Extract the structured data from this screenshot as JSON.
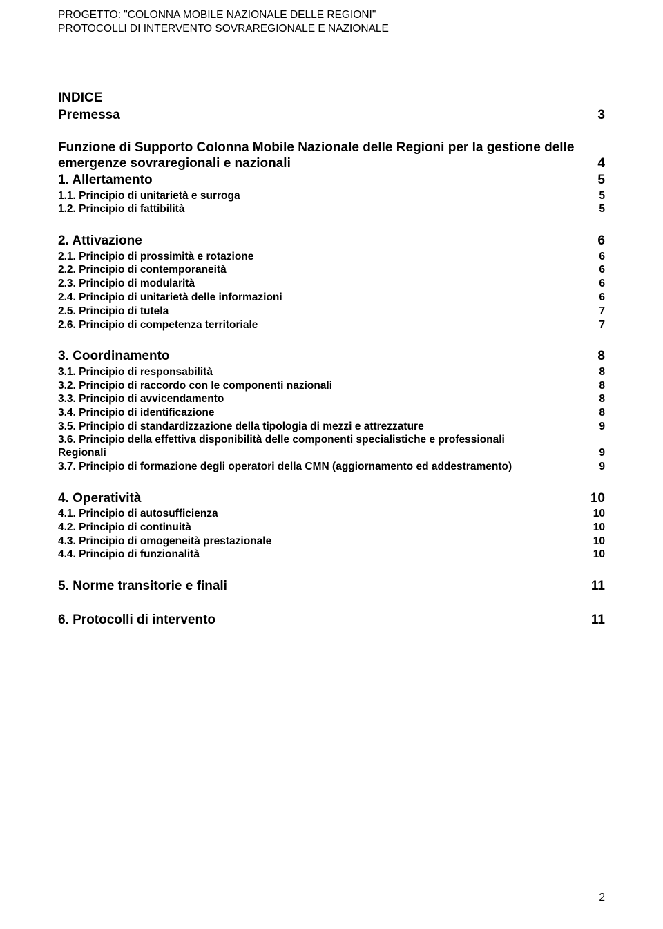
{
  "header": {
    "line1": "PROGETTO: \"COLONNA MOBILE NAZIONALE DELLE REGIONI\"",
    "line2": "PROTOCOLLI DI INTERVENTO SOVRAREGIONALE E NAZIONALE"
  },
  "toc": {
    "title": "INDICE",
    "premessa": {
      "label": "Premessa",
      "page": "3"
    },
    "funzione": {
      "line1": "Funzione di Supporto Colonna Mobile Nazionale delle Regioni per la gestione delle",
      "line2": "emergenze sovraregionali e nazionali",
      "page": "4"
    },
    "s1": {
      "head": {
        "label": "1. Allertamento",
        "page": "5"
      },
      "items": [
        {
          "label": "1.1. Principio di unitarietà e surroga",
          "page": "5"
        },
        {
          "label": "1.2. Principio di fattibilità",
          "page": "5"
        }
      ]
    },
    "s2": {
      "head": {
        "label": "2. Attivazione",
        "page": "6"
      },
      "items": [
        {
          "label": "2.1. Principio di prossimità e rotazione",
          "page": "6"
        },
        {
          "label": "2.2. Principio di contemporaneità",
          "page": "6"
        },
        {
          "label": "2.3. Principio di modularità",
          "page": "6"
        },
        {
          "label": "2.4. Principio di unitarietà delle informazioni",
          "page": "6"
        },
        {
          "label": "2.5. Principio di tutela",
          "page": "7"
        },
        {
          "label": "2.6. Principio di competenza territoriale",
          "page": "7"
        }
      ]
    },
    "s3": {
      "head": {
        "label": "3. Coordinamento",
        "page": "8"
      },
      "items": [
        {
          "label": "3.1. Principio di responsabilità",
          "page": "8"
        },
        {
          "label": "3.2. Principio di raccordo con le componenti nazionali",
          "page": "8"
        },
        {
          "label": "3.3. Principio di avvicendamento",
          "page": "8"
        },
        {
          "label": "3.4. Principio di identificazione",
          "page": "8"
        },
        {
          "label": "3.5. Principio di standardizzazione della tipologia di mezzi e attrezzature",
          "page": "9"
        }
      ],
      "wrap36": {
        "line1": "3.6. Principio della effettiva disponibilità delle componenti specialistiche e professionali",
        "line2": "Regionali",
        "page": "9"
      },
      "item37": {
        "label": "3.7. Principio di formazione degli operatori della CMN (aggiornamento ed addestramento)",
        "page": "9"
      }
    },
    "s4": {
      "head": {
        "label": "4. Operatività",
        "page": "10"
      },
      "items": [
        {
          "label": "4.1. Principio di autosufficienza",
          "page": "10"
        },
        {
          "label": "4.2. Principio di continuità",
          "page": "10"
        },
        {
          "label": "4.3. Principio di omogeneità prestazionale",
          "page": "10"
        },
        {
          "label": "4.4. Principio di funzionalità",
          "page": "10"
        }
      ]
    },
    "s5": {
      "head": {
        "label": "5. Norme transitorie e finali",
        "page": "11"
      }
    },
    "s6": {
      "head": {
        "label": "6. Protocolli di intervento",
        "page": "11"
      }
    }
  },
  "footer": {
    "pageNumber": "2"
  }
}
